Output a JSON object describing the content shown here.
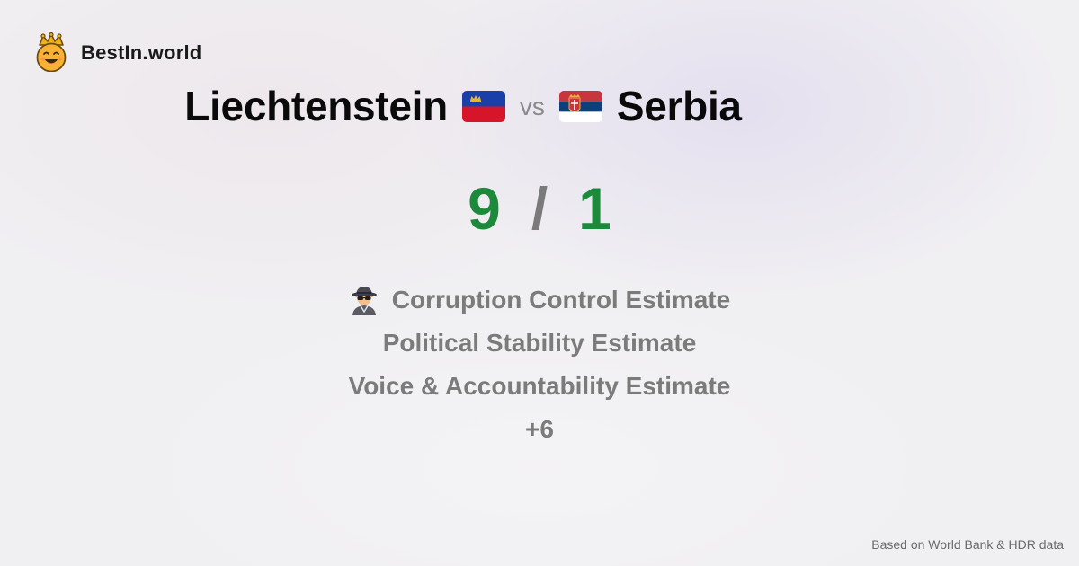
{
  "brand": {
    "name": "BestIn.world",
    "logo_icon": "crowned-smiley-icon"
  },
  "comparison": {
    "left_country": "Liechtenstein",
    "left_flag_icon": "liechtenstein-flag-icon",
    "vs_label": "vs",
    "right_country": "Serbia",
    "right_flag_icon": "serbia-flag-icon"
  },
  "score": {
    "left": "9",
    "separator": "/",
    "right": "1"
  },
  "metrics": [
    {
      "label": "Corruption Control Estimate",
      "icon": "spy-detective-icon"
    },
    {
      "label": "Political Stability Estimate"
    },
    {
      "label": "Voice & Accountability Estimate"
    }
  ],
  "more_label": "+6",
  "footer": {
    "source": "Based on World Bank & HDR data"
  },
  "colors": {
    "score_green": "#1c8a3a",
    "muted_gray": "#7b7b7b",
    "background": "#f0eff2"
  }
}
